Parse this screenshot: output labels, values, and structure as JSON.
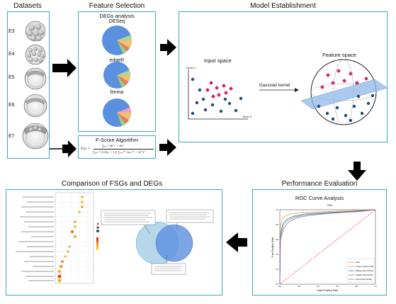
{
  "datasets": {
    "title": "Datasets",
    "stages": [
      "E3",
      "E4",
      "E5",
      "E6",
      "E7"
    ]
  },
  "feature_selection": {
    "title": "Feature Selection",
    "degs_title": "DEGs analysis",
    "methods": [
      "DESeq",
      "edgeR",
      "limma"
    ],
    "fscore_title": "F-Score Algorithm",
    "fscore_lhs": "F(i) =",
    "fscore_num": "∑ₖ₌₁ᶜ (x̄ᵢ⁽ᵏ⁾ − x̄ᵢ)²",
    "fscore_den": "∑ₖ₌₁ᶜ (1/(Nₖ − 1)) ∑ⱼ₌₁ᴺᵏ (xⱼ,ᵢ⁽ᵏ⁾ − x̄ᵢ⁽ᵏ⁾)²"
  },
  "model": {
    "title": "Model Establishment",
    "input_space": "Input space",
    "feature_space": "Feature space",
    "kernel": "Gaussian kernel",
    "gene_y": "Gene Y",
    "gene_x": "Gene X"
  },
  "performance": {
    "title": "Performance Evaluation",
    "roc_title": "ROC Curve Analysis"
  },
  "comparison": {
    "title": "Comparison of FSGs and DEGs"
  },
  "roc": {
    "plot_title": "ROC",
    "xlabel": "False Positive Rate",
    "ylabel": "True Positive Rate",
    "ticks": [
      "0.0",
      "0.2",
      "0.4",
      "0.6",
      "0.8",
      "1.0"
    ],
    "legend": [
      "Luck",
      "F-score (AUC=0.95)",
      "DESeq (AUC=0.94)",
      "edgeR (AUC=0.94)",
      "limma (AUC=0.94)"
    ],
    "colors": [
      "#d33",
      "#e8a030",
      "#3a6fd0",
      "#3aa04a",
      "#9b59b6"
    ]
  },
  "colors": {
    "accent": "#37a8c4",
    "pie_main": "#5b8fe0",
    "diamond": "#d6256a",
    "dot": "#1e4a80",
    "venn_left": "#a9cfe6",
    "venn_right": "#5b8fe0"
  }
}
